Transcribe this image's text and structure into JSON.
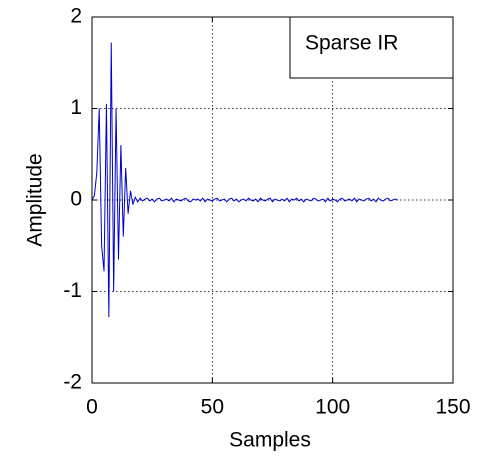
{
  "chart_data": {
    "type": "line",
    "xlabel": "Samples",
    "ylabel": "Amplitude",
    "x": [
      0,
      1,
      2,
      3,
      4,
      5,
      6,
      7,
      8,
      9,
      10,
      11,
      12,
      13,
      14,
      15,
      16,
      17,
      18,
      19,
      20,
      21,
      22,
      23,
      24,
      25,
      26,
      27,
      28,
      29,
      30,
      31,
      32,
      33,
      34,
      35,
      36,
      37,
      38,
      39,
      40,
      41,
      42,
      43,
      44,
      45,
      46,
      47,
      48,
      49,
      50,
      51,
      52,
      53,
      54,
      55,
      56,
      57,
      58,
      59,
      60,
      61,
      62,
      63,
      64,
      65,
      66,
      67,
      68,
      69,
      70,
      71,
      72,
      73,
      74,
      75,
      76,
      77,
      78,
      79,
      80,
      81,
      82,
      83,
      84,
      85,
      86,
      87,
      88,
      89,
      90,
      91,
      92,
      93,
      94,
      95,
      96,
      97,
      98,
      99,
      100,
      101,
      102,
      103,
      104,
      105,
      106,
      107,
      108,
      109,
      110,
      111,
      112,
      113,
      114,
      115,
      116,
      117,
      118,
      119,
      120,
      121,
      122,
      123,
      124,
      125,
      126,
      127
    ],
    "series": [
      {
        "name": "Sparse IR",
        "color": "#0000cc",
        "values": [
          0,
          0.05,
          0.3,
          1.0,
          -0.5,
          -0.78,
          1.05,
          -1.28,
          1.72,
          -1.0,
          1.0,
          -0.65,
          0.6,
          -0.4,
          0.35,
          -0.15,
          0.1,
          -0.05,
          0.03,
          -0.02,
          0.02,
          -0.01,
          0.01,
          0.02,
          -0.01,
          0.01,
          -0.02,
          0.01,
          0.02,
          -0.01,
          0.0,
          0.01,
          -0.01,
          0.02,
          -0.02,
          0.01,
          0.0,
          -0.01,
          0.01,
          0.02,
          -0.01,
          -0.02,
          0.01,
          0.0,
          0.01,
          -0.01,
          0.02,
          -0.02,
          0.01,
          0.0,
          -0.01,
          0.01,
          0.02,
          -0.01,
          0.0,
          0.01,
          -0.02,
          0.01,
          0.02,
          -0.01,
          0.01,
          -0.02,
          0.0,
          0.01,
          -0.01,
          0.02,
          0.0,
          -0.01,
          0.01,
          -0.02,
          0.02,
          0.0,
          -0.01,
          0.01,
          0.02,
          -0.02,
          0.01,
          0.0,
          -0.01,
          0.01,
          -0.01,
          0.02,
          -0.02,
          0.01,
          0.0,
          0.02,
          -0.01,
          0.01,
          -0.02,
          0.01,
          0.0,
          -0.01,
          0.02,
          0.01,
          -0.01,
          0.0,
          0.01,
          -0.02,
          0.02,
          -0.01,
          0.01,
          0.0,
          -0.02,
          0.01,
          0.02,
          -0.01,
          0.0,
          0.01,
          -0.01,
          0.02,
          -0.02,
          0.01,
          0.0,
          -0.01,
          0.01,
          0.02,
          -0.01,
          0.01,
          -0.02,
          0.02,
          0.0,
          -0.01,
          0.01,
          0.02,
          -0.01,
          0.0,
          0.01,
          0.0
        ]
      }
    ],
    "xlim": [
      0,
      150
    ],
    "xticks": [
      0,
      50,
      100,
      150
    ],
    "ylim": [
      -2,
      2
    ],
    "yticks": [
      -2,
      -1,
      0,
      1,
      2
    ],
    "grid": true,
    "legend": "upper right"
  }
}
